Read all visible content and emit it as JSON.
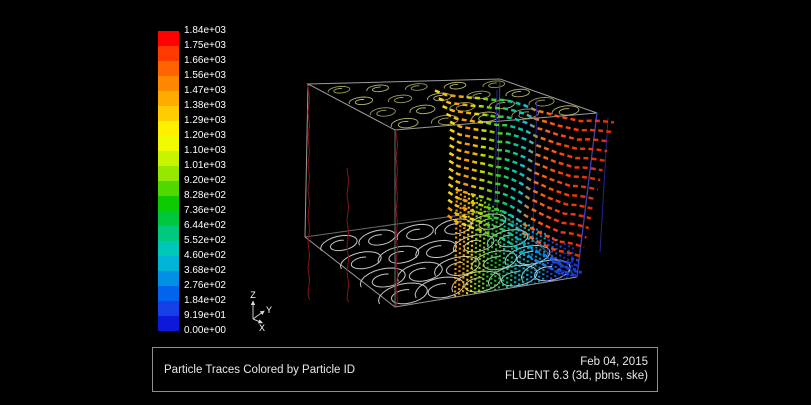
{
  "colors": {
    "background": "#000000",
    "legend_text": "#ffffff",
    "wireframe_gray": "#9a9a9a",
    "edge_dark_red": "#7a1212",
    "edge_dark_blue": "#3c3cc0",
    "top_swirls": "#a6a660",
    "bottom_swirls": "#c6c6c6",
    "footer_border": "#8f8f8f",
    "footer_text": "#e8e8e8"
  },
  "legend": {
    "labels": [
      "1.84e+03",
      "1.75e+03",
      "1.66e+03",
      "1.56e+03",
      "1.47e+03",
      "1.38e+03",
      "1.29e+03",
      "1.20e+03",
      "1.10e+03",
      "1.01e+03",
      "9.20e+02",
      "8.28e+02",
      "7.36e+02",
      "6.44e+02",
      "5.52e+02",
      "4.60e+02",
      "3.68e+02",
      "2.76e+02",
      "1.84e+02",
      "9.19e+01",
      "0.00e+00"
    ],
    "band_colors": [
      "#ff0100",
      "#ff3a00",
      "#ff6400",
      "#ff8800",
      "#ffab00",
      "#ffcd00",
      "#fff000",
      "#f0fa00",
      "#c8f400",
      "#96e800",
      "#50d800",
      "#0ccb00",
      "#00c83e",
      "#00c87e",
      "#00c8b9",
      "#00b4d8",
      "#0090e4",
      "#0064ec",
      "#1540e8",
      "#0e18d8"
    ]
  },
  "scene": {
    "axis_triad": {
      "z": "Z",
      "y": "Y",
      "x": "X"
    }
  },
  "footer": {
    "caption": "Particle Traces Colored by Particle ID",
    "date": "Feb 04, 2015",
    "app": "FLUENT 6.3 (3d, pbns, ske)"
  },
  "chart_data": {
    "type": "scatter",
    "subtype": "3d_particle_traces",
    "title": "Particle Traces Colored by Particle ID",
    "color_variable": "Particle ID",
    "colorbar": {
      "orientation": "vertical",
      "position": "left",
      "colormap": "rainbow_blue_to_red",
      "range": [
        0,
        1840
      ],
      "tick_labels": [
        "1.84e+03",
        "1.75e+03",
        "1.66e+03",
        "1.56e+03",
        "1.47e+03",
        "1.38e+03",
        "1.29e+03",
        "1.20e+03",
        "1.10e+03",
        "1.01e+03",
        "9.20e+02",
        "8.28e+02",
        "7.36e+02",
        "6.44e+02",
        "5.52e+02",
        "4.60e+02",
        "3.68e+02",
        "2.76e+02",
        "1.84e+02",
        "9.19e+01",
        "0.00e+00"
      ],
      "tick_values": [
        1840,
        1750,
        1660,
        1560,
        1470,
        1380,
        1290,
        1200,
        1100,
        1010,
        920,
        828,
        736,
        644,
        552,
        460,
        368,
        276,
        184,
        91.9,
        0
      ]
    },
    "scene_description": "Wireframe box domain viewed in perspective; swirl (vortex) line patterns on top and bottom faces around a tube bundle; a vertical curtain of dotted particle traces colored by particle ID (yellow-green-cyan-red rows collapsing to blue at the lower right corner); dark red trace filaments on the left; XYZ axis triad at lower left",
    "axes": [
      "X",
      "Y",
      "Z"
    ],
    "grid": false,
    "annotations": [
      "Feb 04, 2015",
      "FLUENT 6.3 (3d, pbns, ske)"
    ]
  }
}
